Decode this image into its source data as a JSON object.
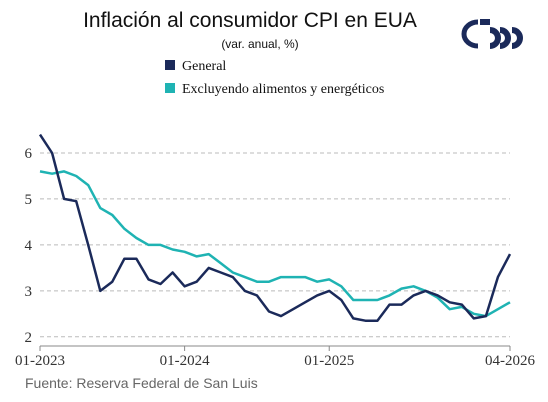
{
  "chart_data": {
    "type": "line",
    "title": "Inflación al consumidor CPI en EUA",
    "subtitle": "(var. anual, %)",
    "source": "Fuente: Reserva Federal de San Luis",
    "categories": [
      "01-2023",
      null,
      null,
      null,
      null,
      null,
      null,
      null,
      null,
      null,
      null,
      null,
      "01-2024",
      null,
      null,
      null,
      null,
      null,
      null,
      null,
      null,
      null,
      null,
      null,
      "01-2025",
      null,
      null,
      null,
      null,
      null,
      null,
      null,
      null,
      null,
      null,
      null,
      null,
      null,
      null,
      "04-2026"
    ],
    "series": [
      {
        "name": "General",
        "color": "#1b2a5a",
        "values": [
          6.4,
          6.0,
          5.0,
          4.95,
          4.0,
          3.0,
          3.2,
          3.7,
          3.7,
          3.25,
          3.15,
          3.4,
          3.1,
          3.2,
          3.5,
          3.4,
          3.3,
          3.0,
          2.9,
          2.55,
          2.45,
          2.6,
          2.75,
          2.9,
          3.0,
          2.8,
          2.4,
          2.35,
          2.35,
          2.7,
          2.7,
          2.9,
          3.0,
          2.9,
          2.75,
          2.7,
          2.4,
          2.45,
          3.3,
          3.8
        ]
      },
      {
        "name": "Excluyendo alimentos y energéticos",
        "color": "#1fb3b3",
        "values": [
          5.6,
          5.55,
          5.6,
          5.5,
          5.3,
          4.8,
          4.65,
          4.35,
          4.15,
          4.0,
          4.0,
          3.9,
          3.85,
          3.75,
          3.8,
          3.6,
          3.4,
          3.3,
          3.2,
          3.2,
          3.3,
          3.3,
          3.3,
          3.2,
          3.25,
          3.1,
          2.8,
          2.8,
          2.8,
          2.9,
          3.05,
          3.1,
          3.0,
          2.85,
          2.6,
          2.65,
          2.5,
          2.45,
          2.6,
          2.75
        ]
      }
    ],
    "ylim": [
      1.8,
      6.5
    ],
    "yticks": [
      2,
      3,
      4,
      5,
      6
    ],
    "grid": true
  }
}
